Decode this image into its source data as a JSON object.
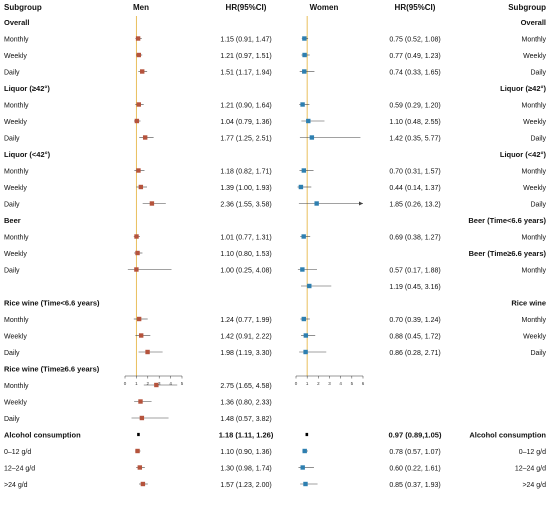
{
  "chart_data": [
    {
      "type": "forest",
      "panel": "Men",
      "headers": {
        "subgroup": "Subgroup",
        "group": "Men",
        "estimate": "HR(95%CI)"
      },
      "x_ticks": [
        "0",
        "1",
        "2",
        "3",
        "4",
        "5"
      ],
      "xlim": [
        0,
        5
      ],
      "reference_line": 1,
      "rows": [
        {
          "label": "Overall",
          "header": true
        },
        {
          "label": "Monthly",
          "hr": 1.15,
          "lo": 0.91,
          "hi": 1.47,
          "text": "1.15 (0.91, 1.47)"
        },
        {
          "label": "Weekly",
          "hr": 1.21,
          "lo": 0.97,
          "hi": 1.51,
          "text": "1.21 (0.97, 1.51)"
        },
        {
          "label": "Daily",
          "hr": 1.51,
          "lo": 1.17,
          "hi": 1.94,
          "text": "1.51 (1.17, 1.94)"
        },
        {
          "label": "Liquor (≥42°)",
          "header": true
        },
        {
          "label": "Monthly",
          "hr": 1.21,
          "lo": 0.9,
          "hi": 1.64,
          "text": "1.21 (0.90, 1.64)"
        },
        {
          "label": "Weekly",
          "hr": 1.04,
          "lo": 0.79,
          "hi": 1.36,
          "text": "1.04 (0.79, 1.36)"
        },
        {
          "label": "Daily",
          "hr": 1.77,
          "lo": 1.25,
          "hi": 2.51,
          "text": "1.77 (1.25, 2.51)"
        },
        {
          "label": "Liquor (<42°)",
          "header": true
        },
        {
          "label": "Monthly",
          "hr": 1.18,
          "lo": 0.82,
          "hi": 1.71,
          "text": "1.18 (0.82, 1.71)"
        },
        {
          "label": "Weekly",
          "hr": 1.39,
          "lo": 1.0,
          "hi": 1.93,
          "text": "1.39 (1.00, 1.93)"
        },
        {
          "label": "Daily",
          "hr": 2.36,
          "lo": 1.55,
          "hi": 3.58,
          "text": "2.36 (1.55, 3.58)"
        },
        {
          "label": "Beer",
          "header": true
        },
        {
          "label": "Monthly",
          "hr": 1.01,
          "lo": 0.77,
          "hi": 1.31,
          "text": "1.01 (0.77, 1.31)"
        },
        {
          "label": "Weekly",
          "hr": 1.1,
          "lo": 0.8,
          "hi": 1.53,
          "text": "1.10 (0.80, 1.53)"
        },
        {
          "label": "Daily",
          "hr": 1.0,
          "lo": 0.25,
          "hi": 4.08,
          "text": "1.00 (0.25, 4.08)"
        },
        {
          "label": "",
          "spacer": true
        },
        {
          "label": "Rice wine (Time<6.6 years)",
          "header": true
        },
        {
          "label": "Monthly",
          "hr": 1.24,
          "lo": 0.77,
          "hi": 1.99,
          "text": "1.24 (0.77, 1.99)"
        },
        {
          "label": "Weekly",
          "hr": 1.42,
          "lo": 0.91,
          "hi": 2.22,
          "text": "1.42 (0.91, 2.22)"
        },
        {
          "label": "Daily",
          "hr": 1.98,
          "lo": 1.19,
          "hi": 3.3,
          "text": "1.98 (1.19, 3.30)"
        },
        {
          "label": "Rice wine (Time≥6.6 years)",
          "header": true
        },
        {
          "label": "Monthly",
          "hr": 2.75,
          "lo": 1.65,
          "hi": 4.58,
          "text": "2.75 (1.65, 4.58)"
        },
        {
          "label": "Weekly",
          "hr": 1.36,
          "lo": 0.8,
          "hi": 2.33,
          "text": "1.36 (0.80, 2.33)"
        },
        {
          "label": "Daily",
          "hr": 1.48,
          "lo": 0.57,
          "hi": 3.82,
          "text": "1.48 (0.57, 3.82)"
        },
        {
          "label": "Alcohol consumption",
          "header": true,
          "hr": 1.18,
          "lo": 1.11,
          "hi": 1.26,
          "text": "1.18 (1.11, 1.26)",
          "overall": true
        },
        {
          "label": "0–12 g/d",
          "hr": 1.1,
          "lo": 0.9,
          "hi": 1.36,
          "text": "1.10 (0.90, 1.36)"
        },
        {
          "label": "12–24 g/d",
          "hr": 1.3,
          "lo": 0.98,
          "hi": 1.74,
          "text": "1.30 (0.98, 1.74)"
        },
        {
          "label": ">24 g/d",
          "hr": 1.57,
          "lo": 1.23,
          "hi": 2.0,
          "text": "1.57 (1.23, 2.00)"
        }
      ]
    },
    {
      "type": "forest",
      "panel": "Women",
      "headers": {
        "subgroup": "Subgroup",
        "group": "Women",
        "estimate": "HR(95%CI)"
      },
      "x_ticks": [
        "0",
        "1",
        "2",
        "3",
        "4",
        "5",
        "6"
      ],
      "xlim": [
        0,
        6
      ],
      "reference_line": 1,
      "rows": [
        {
          "label": "Overall",
          "header": true
        },
        {
          "label": "Monthly",
          "hr": 0.75,
          "lo": 0.52,
          "hi": 1.08,
          "text": "0.75 (0.52, 1.08)"
        },
        {
          "label": "Weekly",
          "hr": 0.77,
          "lo": 0.49,
          "hi": 1.23,
          "text": "0.77 (0.49, 1.23)"
        },
        {
          "label": "Daily",
          "hr": 0.74,
          "lo": 0.33,
          "hi": 1.65,
          "text": "0.74 (0.33, 1.65)"
        },
        {
          "label": "Liquor (≥42°)",
          "header": true
        },
        {
          "label": "Monthly",
          "hr": 0.59,
          "lo": 0.29,
          "hi": 1.2,
          "text": "0.59 (0.29, 1.20)"
        },
        {
          "label": "Weekly",
          "hr": 1.1,
          "lo": 0.48,
          "hi": 2.55,
          "text": "1.10 (0.48, 2.55)"
        },
        {
          "label": "Daily",
          "hr": 1.42,
          "lo": 0.35,
          "hi": 5.77,
          "text": "1.42 (0.35, 5.77)"
        },
        {
          "label": "Liquor (<42°)",
          "header": true
        },
        {
          "label": "Monthly",
          "hr": 0.7,
          "lo": 0.31,
          "hi": 1.57,
          "text": "0.70 (0.31, 1.57)"
        },
        {
          "label": "Weekly",
          "hr": 0.44,
          "lo": 0.14,
          "hi": 1.37,
          "text": "0.44 (0.14, 1.37)"
        },
        {
          "label": "Daily",
          "hr": 1.85,
          "lo": 0.26,
          "hi": 13.2,
          "text": "1.85 (0.26, 13.2)",
          "arrow": true
        },
        {
          "label": "Beer (Time<6.6 years)",
          "header": true
        },
        {
          "label": "Monthly",
          "hr": 0.69,
          "lo": 0.38,
          "hi": 1.27,
          "text": "0.69 (0.38, 1.27)"
        },
        {
          "label": "Beer (Time≥6.6 years)",
          "header": true
        },
        {
          "label": "Monthly",
          "hr": 0.57,
          "lo": 0.17,
          "hi": 1.88,
          "text": "0.57 (0.17, 1.88)"
        },
        {
          "label": "",
          "hr": 1.19,
          "lo": 0.45,
          "hi": 3.16,
          "text": "1.19 (0.45, 3.16)"
        },
        {
          "label": "Rice wine",
          "header": true
        },
        {
          "label": "Monthly",
          "hr": 0.7,
          "lo": 0.39,
          "hi": 1.24,
          "text": "0.70 (0.39, 1.24)"
        },
        {
          "label": "Weekly",
          "hr": 0.88,
          "lo": 0.45,
          "hi": 1.72,
          "text": "0.88 (0.45, 1.72)"
        },
        {
          "label": "Daily",
          "hr": 0.86,
          "lo": 0.28,
          "hi": 2.71,
          "text": "0.86 (0.28, 2.71)"
        },
        {
          "label": "",
          "spacer": true
        },
        {
          "label": "",
          "spacer": true
        },
        {
          "label": "",
          "spacer": true
        },
        {
          "label": "",
          "spacer": true
        },
        {
          "label": "Alcohol consumption",
          "header": true,
          "hr": 0.97,
          "lo": 0.89,
          "hi": 1.05,
          "text": "0.97 (0.89,1.05)",
          "overall": true
        },
        {
          "label": "0–12 g/d",
          "hr": 0.78,
          "lo": 0.57,
          "hi": 1.07,
          "text": "0.78 (0.57, 1.07)"
        },
        {
          "label": "12–24 g/d",
          "hr": 0.6,
          "lo": 0.22,
          "hi": 1.61,
          "text": "0.60 (0.22, 1.61)"
        },
        {
          "label": ">24 g/d",
          "hr": 0.85,
          "lo": 0.37,
          "hi": 1.93,
          "text": "0.85 (0.37, 1.93)"
        }
      ]
    }
  ],
  "colors": {
    "men_marker": "#b5533c",
    "women_marker": "#2e7fb0",
    "ci_line": "#444444",
    "reference_line": "#e6b84a",
    "text": "#111111"
  }
}
